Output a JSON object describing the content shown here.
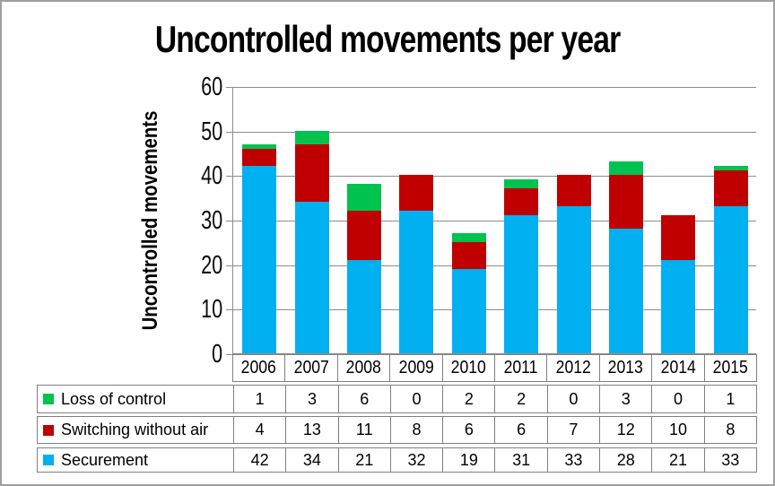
{
  "chart_data": {
    "type": "bar",
    "stacked": true,
    "title": "Uncontrolled movements per year",
    "ylabel": "Uncontrolled movements",
    "xlabel": "",
    "categories": [
      "2006",
      "2007",
      "2008",
      "2009",
      "2010",
      "2011",
      "2012",
      "2013",
      "2014",
      "2015"
    ],
    "series": [
      {
        "name": "Loss of control",
        "color": "#00C24E",
        "values": [
          1,
          3,
          6,
          0,
          2,
          2,
          0,
          3,
          0,
          1
        ]
      },
      {
        "name": "Switching without air",
        "color": "#C00000",
        "values": [
          4,
          13,
          11,
          8,
          6,
          6,
          7,
          12,
          10,
          8
        ]
      },
      {
        "name": "Securement",
        "color": "#00B0F0",
        "values": [
          42,
          34,
          21,
          32,
          19,
          31,
          33,
          28,
          21,
          33
        ]
      }
    ],
    "stack_order_bottom_to_top": [
      "Securement",
      "Switching without air",
      "Loss of control"
    ],
    "ylim": [
      0,
      60
    ],
    "yticks": [
      0,
      10,
      20,
      30,
      40,
      50,
      60
    ],
    "grid": "horizontal",
    "legend_position": "data-table-left",
    "data_table_shown": true
  },
  "colors": {
    "grid": "#8C8C8C",
    "axis": "#8C8C8C",
    "table_border": "#808080",
    "background": "#FFFFFF",
    "text": "#000000"
  }
}
